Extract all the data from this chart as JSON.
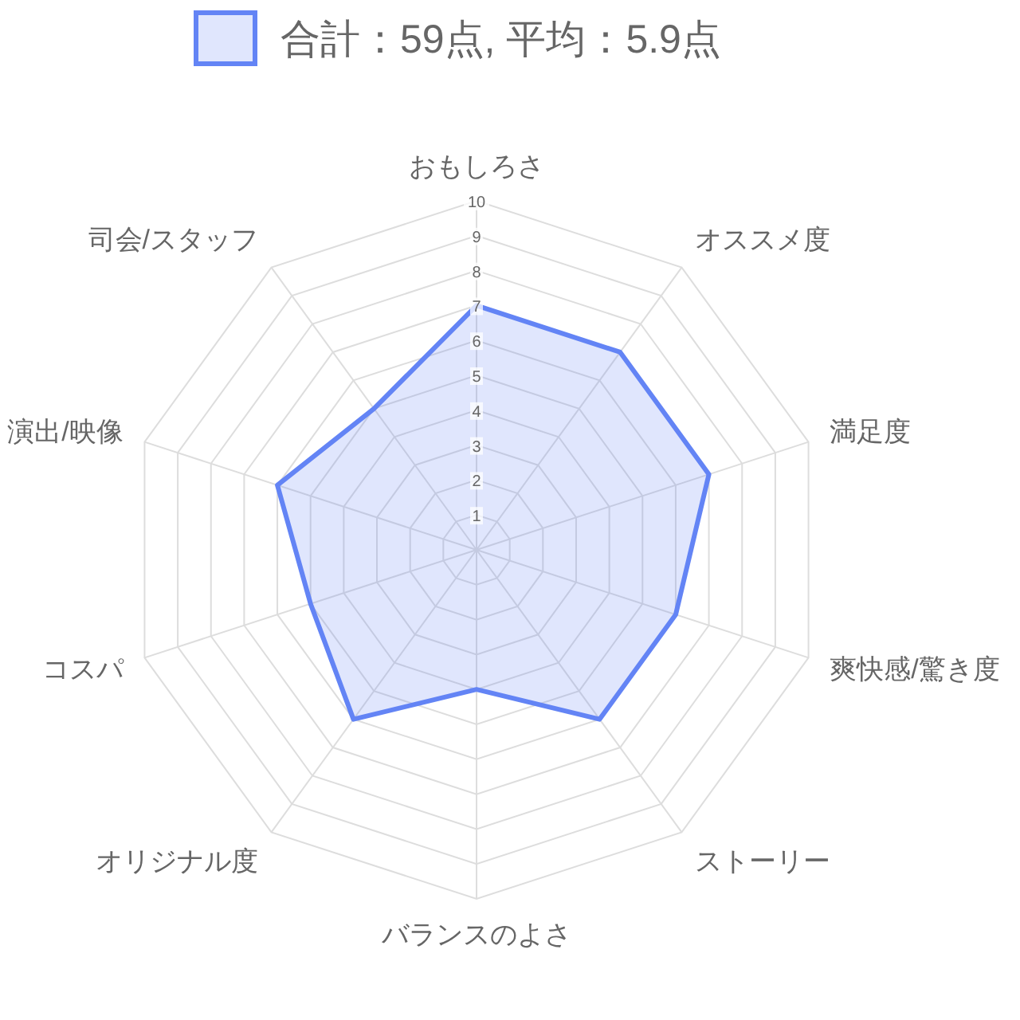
{
  "chart_data": {
    "type": "radar",
    "categories": [
      "おもしろさ",
      "オススメ度",
      "満足度",
      "爽快感/驚き度",
      "ストーリー",
      "バランスのよさ",
      "オリジナル度",
      "コスパ",
      "演出/映像",
      "司会/スタッフ"
    ],
    "series": [
      {
        "name": "合計：59点, 平均：5.9点",
        "color": "#6384f5",
        "values": [
          7,
          7,
          7,
          6,
          6,
          4,
          6,
          5,
          6,
          5
        ]
      }
    ],
    "ylim": [
      0,
      10
    ],
    "yticks": [
      1,
      2,
      3,
      4,
      5,
      6,
      7,
      8,
      9,
      10
    ],
    "grid": true,
    "legend": "top"
  }
}
